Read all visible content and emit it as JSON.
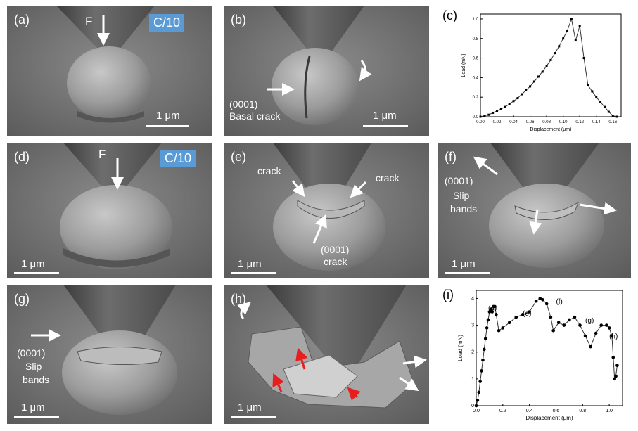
{
  "colors": {
    "badge_bg": "#5b9bd5",
    "arrow_red": "#e81e1e",
    "arrow_white": "#ffffff"
  },
  "panels": {
    "a": {
      "label": "(a)",
      "force": "F",
      "badge": "C/10",
      "scale": "1 μm"
    },
    "b": {
      "label": "(b)",
      "crack_line1": "(0001)",
      "crack_line2": "Basal crack",
      "scale": "1 μm"
    },
    "c": {
      "label": "(c)"
    },
    "d": {
      "label": "(d)",
      "force": "F",
      "badge": "C/10",
      "scale": "1 μm"
    },
    "e": {
      "label": "(e)",
      "crack_left": "crack",
      "crack_right": "crack",
      "crack_bottom1": "(0001)",
      "crack_bottom2": "crack",
      "scale": "1 μm"
    },
    "f": {
      "label": "(f)",
      "slip1": "(0001)",
      "slip2": "Slip",
      "slip3": "bands",
      "scale": "1 μm"
    },
    "g": {
      "label": "(g)",
      "slip1": "(0001)",
      "slip2": "Slip",
      "slip3": "bands",
      "scale": "1 μm"
    },
    "h": {
      "label": "(h)",
      "scale": "1 μm"
    },
    "i": {
      "label": "(i)"
    }
  },
  "chart_data": [
    {
      "type": "line",
      "panel": "(c)",
      "xlabel": "Displacement (μm)",
      "ylabel": "Load (mN)",
      "xlim": [
        0,
        0.17
      ],
      "ylim": [
        0,
        1.05
      ],
      "xticks": [
        "0.00",
        "0.02",
        "0.04",
        "0.06",
        "0.08",
        "0.10",
        "0.12",
        "0.14",
        "0.16"
      ],
      "yticks": [
        "0.0",
        "0.2",
        "0.4",
        "0.6",
        "0.8",
        "1.0"
      ],
      "x": [
        0.0,
        0.005,
        0.01,
        0.015,
        0.02,
        0.025,
        0.03,
        0.035,
        0.04,
        0.045,
        0.05,
        0.055,
        0.06,
        0.065,
        0.07,
        0.075,
        0.08,
        0.085,
        0.09,
        0.095,
        0.1,
        0.105,
        0.11,
        0.115,
        0.12,
        0.125,
        0.13,
        0.135,
        0.14,
        0.145,
        0.15,
        0.155,
        0.16,
        0.165
      ],
      "y": [
        0.0,
        0.01,
        0.02,
        0.04,
        0.06,
        0.08,
        0.1,
        0.13,
        0.16,
        0.19,
        0.23,
        0.27,
        0.31,
        0.36,
        0.41,
        0.46,
        0.52,
        0.58,
        0.65,
        0.72,
        0.8,
        0.88,
        1.0,
        0.78,
        0.93,
        0.6,
        0.32,
        0.26,
        0.2,
        0.15,
        0.1,
        0.05,
        0.01,
        0.0
      ]
    },
    {
      "type": "line",
      "panel": "(i)",
      "xlabel": "Displacement (μm)",
      "ylabel": "Load (mN)",
      "xlim": [
        0,
        1.1
      ],
      "ylim": [
        0,
        4.3
      ],
      "xticks": [
        "0.0",
        "0.2",
        "0.4",
        "0.6",
        "0.8",
        "1.0"
      ],
      "yticks": [
        "0",
        "1",
        "2",
        "3",
        "4"
      ],
      "x": [
        0.0,
        0.01,
        0.02,
        0.03,
        0.04,
        0.05,
        0.06,
        0.07,
        0.08,
        0.09,
        0.1,
        0.11,
        0.12,
        0.13,
        0.14,
        0.15,
        0.17,
        0.2,
        0.25,
        0.3,
        0.35,
        0.4,
        0.45,
        0.48,
        0.5,
        0.53,
        0.56,
        0.58,
        0.62,
        0.66,
        0.7,
        0.74,
        0.78,
        0.82,
        0.86,
        0.9,
        0.94,
        0.98,
        1.0,
        1.02,
        1.03,
        1.04,
        1.05,
        1.06
      ],
      "y": [
        0.0,
        0.2,
        0.5,
        0.9,
        1.3,
        1.7,
        2.1,
        2.5,
        2.9,
        3.2,
        3.5,
        3.6,
        3.5,
        3.7,
        3.7,
        3.4,
        2.8,
        2.9,
        3.1,
        3.3,
        3.4,
        3.5,
        3.9,
        4.0,
        3.95,
        3.8,
        3.3,
        2.8,
        3.1,
        3.0,
        3.2,
        3.3,
        3.0,
        2.6,
        2.2,
        2.7,
        3.0,
        3.0,
        2.9,
        2.6,
        1.8,
        1.0,
        1.1,
        1.5
      ],
      "annotations": [
        {
          "text": "(d)",
          "x": 0.09,
          "y": 3.55
        },
        {
          "text": "(e)",
          "x": 0.35,
          "y": 3.35
        },
        {
          "text": "(f)",
          "x": 0.6,
          "y": 3.8
        },
        {
          "text": "(g)",
          "x": 0.82,
          "y": 3.1
        },
        {
          "text": "(h)",
          "x": 1.0,
          "y": 2.5
        }
      ]
    }
  ]
}
